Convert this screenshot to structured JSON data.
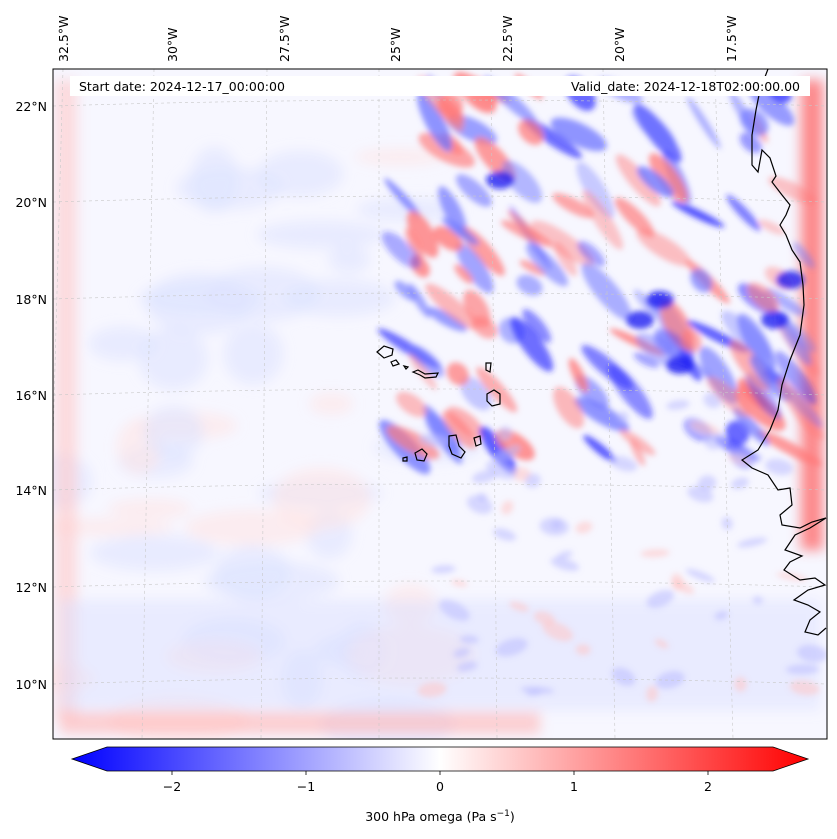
{
  "header": {
    "start_date": "Start date: 2024-12-17_00:00:00",
    "valid_date": "Valid_date: 2024-12-18T02:00:00.00"
  },
  "longitude_labels": [
    "32.5°W",
    "30°W",
    "27.5°W",
    "25°W",
    "22.5°W",
    "20°W",
    "17.5°W"
  ],
  "latitude_labels": [
    "22°N",
    "20°N",
    "18°N",
    "16°N",
    "14°N",
    "12°N",
    "10°N"
  ],
  "colorbar": {
    "ticks": [
      "−2",
      "−1",
      "0",
      "1",
      "2"
    ],
    "label": "300 hPa omega (Pa s",
    "label_exp": "−1",
    "label_close": ")",
    "colors": {
      "min": "#0000ff",
      "mid": "#ffffff",
      "max": "#ff0000"
    }
  },
  "chart_data": {
    "type": "heatmap",
    "variable": "300 hPa omega",
    "units": "Pa s−1",
    "colormap": "bwr",
    "vmin": -2.5,
    "vmax": 2.5,
    "extend": "both",
    "lon_range": [
      -33,
      -15
    ],
    "lat_range": [
      9,
      22.8
    ],
    "grid": true
  }
}
